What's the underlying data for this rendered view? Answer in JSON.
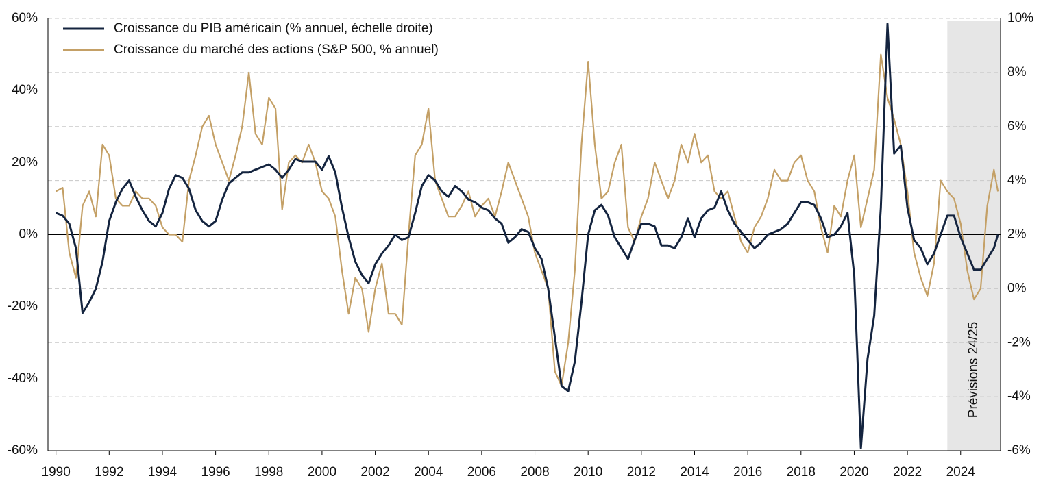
{
  "chart_data": {
    "type": "line",
    "x": [
      1990,
      1990.25,
      1990.5,
      1990.75,
      1991,
      1991.25,
      1991.5,
      1991.75,
      1992,
      1992.25,
      1992.5,
      1992.75,
      1993,
      1993.25,
      1993.5,
      1993.75,
      1994,
      1994.25,
      1994.5,
      1994.75,
      1995,
      1995.25,
      1995.5,
      1995.75,
      1996,
      1996.25,
      1996.5,
      1996.75,
      1997,
      1997.25,
      1997.5,
      1997.75,
      1998,
      1998.25,
      1998.5,
      1998.75,
      1999,
      1999.25,
      1999.5,
      1999.75,
      2000,
      2000.25,
      2000.5,
      2000.75,
      2001,
      2001.25,
      2001.5,
      2001.75,
      2002,
      2002.25,
      2002.5,
      2002.75,
      2003,
      2003.25,
      2003.5,
      2003.75,
      2004,
      2004.25,
      2004.5,
      2004.75,
      2005,
      2005.25,
      2005.5,
      2005.75,
      2006,
      2006.25,
      2006.5,
      2006.75,
      2007,
      2007.25,
      2007.5,
      2007.75,
      2008,
      2008.25,
      2008.5,
      2008.75,
      2009,
      2009.25,
      2009.5,
      2009.75,
      2010,
      2010.25,
      2010.5,
      2010.75,
      2011,
      2011.25,
      2011.5,
      2011.75,
      2012,
      2012.25,
      2012.5,
      2012.75,
      2013,
      2013.25,
      2013.5,
      2013.75,
      2014,
      2014.25,
      2014.5,
      2014.75,
      2015,
      2015.25,
      2015.5,
      2015.75,
      2016,
      2016.25,
      2016.5,
      2016.75,
      2017,
      2017.25,
      2017.5,
      2017.75,
      2018,
      2018.25,
      2018.5,
      2018.75,
      2019,
      2019.25,
      2019.5,
      2019.75,
      2020,
      2020.25,
      2020.5,
      2020.75,
      2021,
      2021.25,
      2021.5,
      2021.75,
      2022,
      2022.25,
      2022.5,
      2022.75,
      2023,
      2023.25,
      2023.5,
      2023.75,
      2024,
      2024.25,
      2024.5,
      2024.75,
      2025,
      2025.25,
      2025.4
    ],
    "series": [
      {
        "name": "Croissance du PIB américain (% annuel, échelle droite)",
        "color": "#14243f",
        "axis": "y2",
        "values": [
          2.8,
          2.7,
          2.4,
          1.5,
          -0.9,
          -0.5,
          0,
          1.0,
          2.5,
          3.2,
          3.7,
          4.0,
          3.4,
          2.9,
          2.5,
          2.3,
          2.8,
          3.7,
          4.2,
          4.1,
          3.7,
          2.9,
          2.5,
          2.3,
          2.5,
          3.3,
          3.9,
          4.1,
          4.3,
          4.3,
          4.4,
          4.5,
          4.6,
          4.4,
          4.1,
          4.4,
          4.8,
          4.7,
          4.7,
          4.7,
          4.4,
          4.9,
          4.3,
          3.0,
          1.9,
          1.0,
          0.5,
          0.2,
          0.9,
          1.3,
          1.6,
          2.0,
          1.8,
          1.9,
          2.8,
          3.8,
          4.2,
          4.0,
          3.6,
          3.4,
          3.8,
          3.6,
          3.3,
          3.2,
          3.0,
          2.9,
          2.6,
          2.4,
          1.7,
          1.9,
          2.2,
          2.1,
          1.5,
          1.1,
          0,
          -1.8,
          -3.6,
          -3.8,
          -2.7,
          -0.5,
          2.0,
          2.9,
          3.1,
          2.7,
          1.9,
          1.5,
          1.1,
          1.8,
          2.4,
          2.4,
          2.3,
          1.6,
          1.6,
          1.5,
          1.9,
          2.6,
          1.9,
          2.6,
          2.9,
          3.0,
          3.6,
          2.9,
          2.4,
          2.1,
          1.8,
          1.5,
          1.7,
          2.0,
          2.1,
          2.2,
          2.4,
          2.8,
          3.2,
          3.2,
          3.1,
          2.6,
          1.9,
          2.0,
          2.3,
          2.8,
          0.5,
          -5.9,
          -2.6,
          -1.0,
          3.0,
          9.8,
          5.0,
          5.3,
          3.0,
          1.8,
          1.5,
          0.9,
          1.3,
          2.0,
          2.7,
          2.7,
          1.9,
          1.3,
          0.7,
          0.7,
          1.1,
          1.5,
          2.0
        ]
      },
      {
        "name": "Croissance du marché des actions (S&P 500, % annuel)",
        "color": "#c4a066",
        "values": [
          12,
          13,
          -5,
          -12,
          8,
          12,
          5,
          25,
          22,
          10,
          8,
          8,
          12,
          10,
          10,
          8,
          2,
          0,
          0,
          -2,
          15,
          22,
          30,
          33,
          25,
          20,
          15,
          22,
          30,
          45,
          28,
          25,
          38,
          35,
          7,
          20,
          22,
          20,
          25,
          20,
          12,
          10,
          5,
          -10,
          -22,
          -12,
          -15,
          -27,
          -15,
          -8,
          -22,
          -22,
          -25,
          0,
          22,
          25,
          35,
          15,
          10,
          5,
          5,
          8,
          12,
          5,
          8,
          10,
          5,
          12,
          20,
          15,
          10,
          5,
          -5,
          -10,
          -15,
          -38,
          -42,
          -30,
          -10,
          25,
          48,
          25,
          10,
          12,
          20,
          25,
          2,
          -2,
          5,
          10,
          20,
          15,
          10,
          15,
          25,
          20,
          28,
          20,
          22,
          12,
          10,
          12,
          5,
          -2,
          -5,
          2,
          5,
          10,
          18,
          15,
          15,
          20,
          22,
          15,
          12,
          2,
          -5,
          8,
          5,
          15,
          22,
          2,
          10,
          18,
          50,
          38,
          32,
          25,
          12,
          -5,
          -12,
          -17,
          -8,
          15,
          12,
          10,
          3,
          -10,
          -18,
          -15,
          8,
          18,
          12
        ]
      }
    ],
    "xlim": [
      1989.7,
      2025.5
    ],
    "xticks": [
      1990,
      1992,
      1994,
      1996,
      1998,
      2000,
      2002,
      2004,
      2006,
      2008,
      2010,
      2012,
      2014,
      2016,
      2018,
      2020,
      2022,
      2024
    ],
    "ylim": [
      -60,
      60
    ],
    "yticks": [
      {
        "value": -60,
        "label": "-60%"
      },
      {
        "value": -40,
        "label": "-40%"
      },
      {
        "value": -20,
        "label": "-20%"
      },
      {
        "value": 0,
        "label": "0%"
      },
      {
        "value": 20,
        "label": "20%"
      },
      {
        "value": 40,
        "label": "40%"
      },
      {
        "value": 60,
        "label": "60%"
      }
    ],
    "y2lim": [
      -6,
      10
    ],
    "y2ticks": [
      {
        "value": -6,
        "label": "-6%"
      },
      {
        "value": -4,
        "label": "-4%"
      },
      {
        "value": -2,
        "label": "-2%"
      },
      {
        "value": 0,
        "label": "0%"
      },
      {
        "value": 2,
        "label": "2%"
      },
      {
        "value": 4,
        "label": "4%"
      },
      {
        "value": 6,
        "label": "6%"
      },
      {
        "value": 8,
        "label": "8%"
      },
      {
        "value": 10,
        "label": "10%"
      }
    ],
    "grid": true,
    "legend": "upper left",
    "forecast": {
      "start": 2023.5,
      "label": "Prévisions 24/25"
    }
  }
}
